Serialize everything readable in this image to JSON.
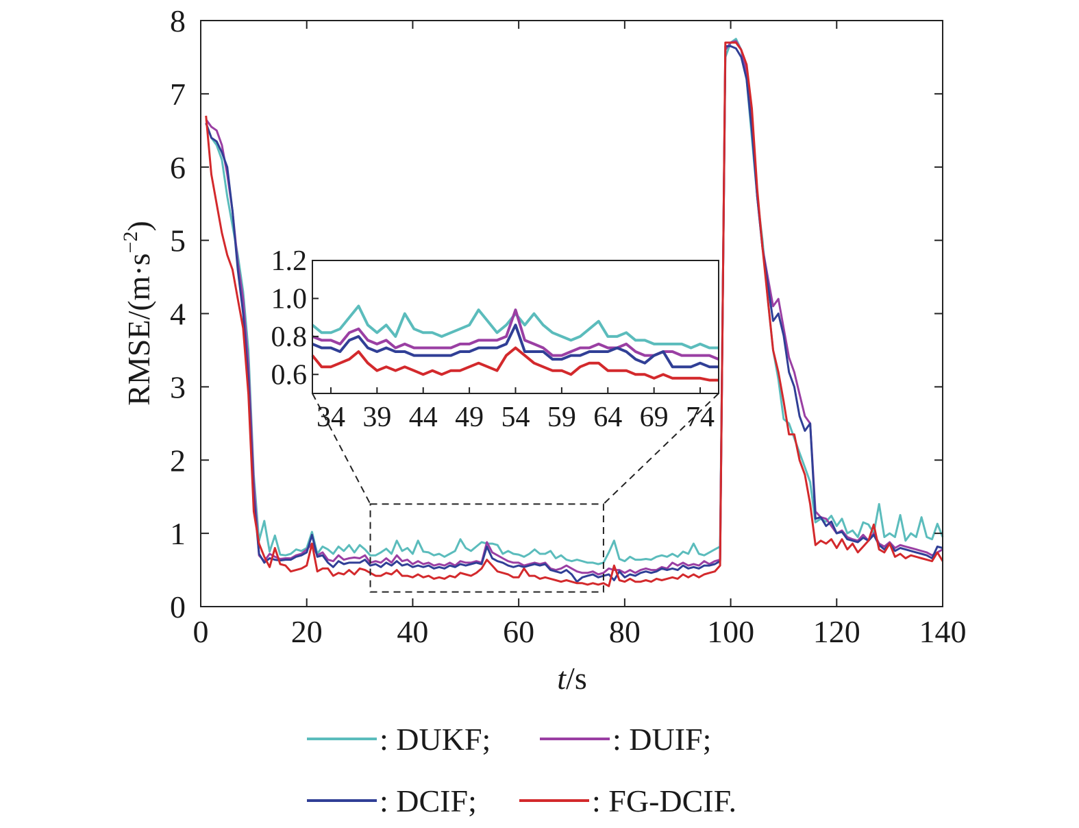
{
  "chart_data": {
    "type": "line",
    "xlabel_italic": "t",
    "xlabel_unit": "/s",
    "ylabel_prefix": "RMSE/(m·s",
    "ylabel_sup": "−2",
    "ylabel_suffix": ")",
    "xlim": [
      0,
      140
    ],
    "ylim": [
      0,
      8
    ],
    "xticks": [
      "0",
      "20",
      "40",
      "60",
      "80",
      "100",
      "120",
      "140"
    ],
    "yticks": [
      "0",
      "1",
      "2",
      "3",
      "4",
      "5",
      "6",
      "7",
      "8"
    ],
    "grid": false,
    "legend_position": "bottom",
    "x": [
      1,
      2,
      3,
      4,
      5,
      6,
      7,
      8,
      9,
      10,
      11,
      12,
      13,
      14,
      15,
      16,
      17,
      18,
      19,
      20,
      21,
      22,
      23,
      24,
      25,
      26,
      27,
      28,
      29,
      30,
      31,
      32,
      33,
      34,
      35,
      36,
      37,
      38,
      39,
      40,
      41,
      42,
      43,
      44,
      45,
      46,
      47,
      48,
      49,
      50,
      51,
      52,
      53,
      54,
      55,
      56,
      57,
      58,
      59,
      60,
      61,
      62,
      63,
      64,
      65,
      66,
      67,
      68,
      69,
      70,
      71,
      72,
      73,
      74,
      75,
      76,
      77,
      78,
      79,
      80,
      81,
      82,
      83,
      84,
      85,
      86,
      87,
      88,
      89,
      90,
      91,
      92,
      93,
      94,
      95,
      96,
      97,
      98,
      99,
      100,
      101,
      102,
      103,
      104,
      105,
      106,
      107,
      108,
      109,
      110,
      111,
      112,
      113,
      114,
      115,
      116,
      117,
      118,
      119,
      120,
      121,
      122,
      123,
      124,
      125,
      126,
      127,
      128,
      129,
      130,
      131,
      132,
      133,
      134,
      135,
      136,
      137,
      138,
      139,
      140
    ],
    "series": [
      {
        "name": "DUKF",
        "color": "#5bbcbc",
        "values": [
          6.6,
          6.4,
          6.3,
          6.1,
          5.6,
          5.2,
          4.8,
          4.3,
          3.5,
          1.8,
          0.9,
          1.17,
          0.75,
          0.97,
          0.71,
          0.7,
          0.72,
          0.78,
          0.76,
          0.8,
          1.02,
          0.72,
          0.82,
          0.78,
          0.72,
          0.82,
          0.76,
          0.84,
          0.74,
          0.84,
          0.78,
          0.7,
          0.7,
          0.74,
          0.79,
          0.72,
          0.9,
          0.76,
          0.8,
          0.72,
          0.9,
          0.75,
          0.74,
          0.7,
          0.72,
          0.68,
          0.72,
          0.76,
          0.92,
          0.8,
          0.76,
          0.82,
          0.88,
          0.86,
          0.86,
          0.84,
          0.72,
          0.76,
          0.72,
          0.71,
          0.68,
          0.72,
          0.78,
          0.72,
          0.72,
          0.76,
          0.66,
          0.7,
          0.64,
          0.62,
          0.64,
          0.62,
          0.6,
          0.6,
          0.58,
          0.6,
          0.74,
          0.9,
          0.65,
          0.62,
          0.68,
          0.64,
          0.64,
          0.65,
          0.64,
          0.68,
          0.7,
          0.68,
          0.72,
          0.68,
          0.75,
          0.72,
          0.86,
          0.72,
          0.7,
          0.74,
          0.78,
          0.82,
          7.5,
          7.7,
          7.75,
          7.6,
          7.2,
          6.4,
          5.6,
          5.0,
          4.2,
          3.5,
          3.1,
          2.56,
          2.5,
          2.3,
          2.1,
          1.9,
          1.7,
          1.15,
          1.2,
          1.16,
          1.24,
          1.1,
          1.2,
          1.0,
          1.04,
          0.95,
          1.15,
          1.12,
          1.0,
          1.4,
          0.95,
          1.0,
          0.95,
          1.25,
          0.9,
          1.0,
          0.95,
          1.22,
          0.95,
          0.92,
          1.13,
          0.95
        ]
      },
      {
        "name": "DUIF",
        "color": "#9a3fa3",
        "values": [
          6.65,
          6.55,
          6.5,
          6.3,
          5.9,
          5.4,
          4.7,
          4.2,
          3.3,
          1.7,
          0.7,
          0.62,
          0.72,
          0.68,
          0.65,
          0.66,
          0.66,
          0.7,
          0.72,
          0.78,
          0.86,
          0.7,
          0.74,
          0.64,
          0.62,
          0.7,
          0.64,
          0.66,
          0.67,
          0.66,
          0.7,
          0.6,
          0.62,
          0.6,
          0.66,
          0.6,
          0.7,
          0.62,
          0.64,
          0.58,
          0.62,
          0.58,
          0.6,
          0.56,
          0.58,
          0.56,
          0.6,
          0.56,
          0.62,
          0.6,
          0.6,
          0.62,
          0.6,
          0.88,
          0.74,
          0.7,
          0.66,
          0.62,
          0.6,
          0.6,
          0.56,
          0.58,
          0.6,
          0.58,
          0.6,
          0.52,
          0.5,
          0.52,
          0.56,
          0.52,
          0.48,
          0.46,
          0.46,
          0.48,
          0.44,
          0.46,
          0.52,
          0.5,
          0.5,
          0.46,
          0.5,
          0.46,
          0.5,
          0.52,
          0.5,
          0.5,
          0.54,
          0.52,
          0.6,
          0.56,
          0.6,
          0.56,
          0.58,
          0.56,
          0.62,
          0.58,
          0.62,
          0.64,
          7.6,
          7.7,
          7.72,
          7.6,
          7.3,
          6.6,
          5.6,
          4.9,
          4.5,
          4.1,
          4.2,
          3.8,
          3.4,
          3.2,
          2.9,
          2.6,
          2.5,
          1.3,
          1.22,
          1.2,
          1.1,
          1.0,
          1.04,
          0.95,
          0.92,
          0.9,
          0.98,
          0.9,
          1.0,
          0.86,
          0.82,
          0.88,
          0.8,
          0.84,
          0.82,
          0.8,
          0.78,
          0.76,
          0.74,
          0.7,
          0.74,
          0.78
        ]
      },
      {
        "name": "DCIF",
        "color": "#303f96",
        "values": [
          6.6,
          6.4,
          6.35,
          6.2,
          6.0,
          5.4,
          4.6,
          4.0,
          3.1,
          1.5,
          0.72,
          0.6,
          0.66,
          0.64,
          0.63,
          0.64,
          0.64,
          0.68,
          0.7,
          0.74,
          0.98,
          0.68,
          0.7,
          0.6,
          0.54,
          0.62,
          0.58,
          0.6,
          0.6,
          0.6,
          0.64,
          0.56,
          0.58,
          0.54,
          0.6,
          0.56,
          0.62,
          0.56,
          0.58,
          0.54,
          0.56,
          0.54,
          0.56,
          0.52,
          0.54,
          0.52,
          0.56,
          0.54,
          0.58,
          0.56,
          0.58,
          0.6,
          0.58,
          0.82,
          0.66,
          0.62,
          0.6,
          0.56,
          0.54,
          0.56,
          0.54,
          0.56,
          0.58,
          0.56,
          0.58,
          0.5,
          0.48,
          0.46,
          0.5,
          0.44,
          0.34,
          0.4,
          0.42,
          0.44,
          0.4,
          0.42,
          0.44,
          0.36,
          0.48,
          0.4,
          0.44,
          0.42,
          0.46,
          0.48,
          0.46,
          0.48,
          0.52,
          0.5,
          0.52,
          0.5,
          0.56,
          0.52,
          0.54,
          0.52,
          0.56,
          0.56,
          0.58,
          0.62,
          7.65,
          7.65,
          7.62,
          7.5,
          7.2,
          6.5,
          5.6,
          4.9,
          4.4,
          3.9,
          4.0,
          3.7,
          3.2,
          3.0,
          2.6,
          2.4,
          2.5,
          1.2,
          1.22,
          1.1,
          1.16,
          1.0,
          1.02,
          0.92,
          0.9,
          0.88,
          0.94,
          0.9,
          0.98,
          0.84,
          0.78,
          0.86,
          0.76,
          0.8,
          0.78,
          0.76,
          0.74,
          0.72,
          0.7,
          0.66,
          0.82,
          0.8
        ]
      },
      {
        "name": "FG-DCIF",
        "color": "#d3292c",
        "values": [
          6.7,
          5.9,
          5.5,
          5.1,
          4.8,
          4.6,
          4.2,
          3.8,
          2.9,
          1.3,
          0.86,
          0.68,
          0.54,
          0.8,
          0.58,
          0.56,
          0.48,
          0.5,
          0.52,
          0.56,
          0.86,
          0.48,
          0.52,
          0.52,
          0.42,
          0.46,
          0.44,
          0.5,
          0.44,
          0.52,
          0.5,
          0.46,
          0.42,
          0.42,
          0.46,
          0.44,
          0.5,
          0.42,
          0.42,
          0.4,
          0.44,
          0.4,
          0.42,
          0.38,
          0.4,
          0.38,
          0.42,
          0.4,
          0.46,
          0.44,
          0.42,
          0.46,
          0.52,
          0.64,
          0.56,
          0.48,
          0.46,
          0.44,
          0.4,
          0.4,
          0.52,
          0.42,
          0.42,
          0.38,
          0.4,
          0.38,
          0.36,
          0.34,
          0.36,
          0.34,
          0.32,
          0.32,
          0.3,
          0.32,
          0.3,
          0.32,
          0.28,
          0.56,
          0.36,
          0.34,
          0.38,
          0.34,
          0.34,
          0.36,
          0.34,
          0.38,
          0.36,
          0.38,
          0.4,
          0.38,
          0.44,
          0.4,
          0.44,
          0.4,
          0.44,
          0.46,
          0.48,
          0.56,
          7.7,
          7.7,
          7.7,
          7.6,
          7.4,
          6.8,
          5.7,
          4.9,
          4.2,
          3.5,
          3.2,
          2.8,
          2.35,
          2.35,
          2.0,
          1.8,
          1.4,
          0.84,
          0.9,
          0.86,
          0.92,
          0.8,
          0.92,
          0.78,
          0.86,
          0.74,
          0.82,
          0.9,
          1.12,
          0.78,
          0.74,
          0.86,
          0.68,
          0.72,
          0.66,
          0.7,
          0.68,
          0.66,
          0.64,
          0.62,
          0.74,
          0.62
        ]
      }
    ],
    "inset": {
      "xlim": [
        32,
        76
      ],
      "ylim": [
        0.5,
        1.2
      ],
      "xticks": [
        "34",
        "39",
        "44",
        "49",
        "54",
        "59",
        "64",
        "69",
        "74"
      ],
      "yticks": [
        "0.6",
        "0.8",
        "1.0",
        "1.2"
      ],
      "x": [
        32,
        33,
        34,
        35,
        36,
        37,
        38,
        39,
        40,
        41,
        42,
        43,
        44,
        45,
        46,
        47,
        48,
        49,
        50,
        51,
        52,
        53,
        54,
        55,
        56,
        57,
        58,
        59,
        60,
        61,
        62,
        63,
        64,
        65,
        66,
        67,
        68,
        69,
        70,
        71,
        72,
        73,
        74,
        75,
        76
      ],
      "series": [
        {
          "name": "DUKF",
          "values": [
            0.86,
            0.82,
            0.82,
            0.84,
            0.9,
            0.96,
            0.86,
            0.82,
            0.86,
            0.8,
            0.92,
            0.84,
            0.82,
            0.82,
            0.8,
            0.82,
            0.84,
            0.86,
            0.94,
            0.88,
            0.82,
            0.86,
            0.92,
            0.86,
            0.92,
            0.86,
            0.82,
            0.8,
            0.78,
            0.8,
            0.84,
            0.88,
            0.8,
            0.8,
            0.82,
            0.78,
            0.78,
            0.76,
            0.76,
            0.76,
            0.76,
            0.74,
            0.76,
            0.74,
            0.74
          ]
        },
        {
          "name": "DUIF",
          "values": [
            0.8,
            0.78,
            0.78,
            0.76,
            0.82,
            0.84,
            0.78,
            0.76,
            0.78,
            0.74,
            0.76,
            0.74,
            0.74,
            0.74,
            0.74,
            0.74,
            0.76,
            0.76,
            0.78,
            0.78,
            0.78,
            0.8,
            0.94,
            0.78,
            0.76,
            0.74,
            0.7,
            0.7,
            0.72,
            0.74,
            0.74,
            0.76,
            0.74,
            0.74,
            0.76,
            0.72,
            0.7,
            0.7,
            0.72,
            0.72,
            0.7,
            0.7,
            0.7,
            0.7,
            0.68
          ]
        },
        {
          "name": "DCIF",
          "values": [
            0.76,
            0.74,
            0.74,
            0.72,
            0.78,
            0.8,
            0.74,
            0.72,
            0.74,
            0.72,
            0.72,
            0.7,
            0.7,
            0.7,
            0.7,
            0.7,
            0.72,
            0.72,
            0.74,
            0.74,
            0.74,
            0.76,
            0.86,
            0.72,
            0.72,
            0.72,
            0.68,
            0.68,
            0.7,
            0.7,
            0.72,
            0.72,
            0.72,
            0.74,
            0.72,
            0.68,
            0.66,
            0.7,
            0.72,
            0.64,
            0.64,
            0.64,
            0.66,
            0.64,
            0.64
          ]
        },
        {
          "name": "FG-DCIF",
          "values": [
            0.7,
            0.64,
            0.64,
            0.66,
            0.68,
            0.72,
            0.66,
            0.62,
            0.64,
            0.62,
            0.64,
            0.62,
            0.6,
            0.62,
            0.6,
            0.62,
            0.62,
            0.64,
            0.66,
            0.64,
            0.62,
            0.7,
            0.74,
            0.7,
            0.66,
            0.64,
            0.62,
            0.62,
            0.6,
            0.64,
            0.66,
            0.66,
            0.62,
            0.62,
            0.62,
            0.6,
            0.6,
            0.58,
            0.6,
            0.58,
            0.58,
            0.58,
            0.58,
            0.57,
            0.57
          ]
        }
      ]
    },
    "zoom_box": {
      "x": [
        32,
        76
      ],
      "y": [
        0.2,
        1.4
      ]
    },
    "legend": [
      {
        "label": ": DUKF;",
        "color": "#5bbcbc"
      },
      {
        "label": ": DUIF;",
        "color": "#9a3fa3"
      },
      {
        "label": ": DCIF;",
        "color": "#303f96"
      },
      {
        "label": ": FG-DCIF.",
        "color": "#d3292c"
      }
    ]
  }
}
